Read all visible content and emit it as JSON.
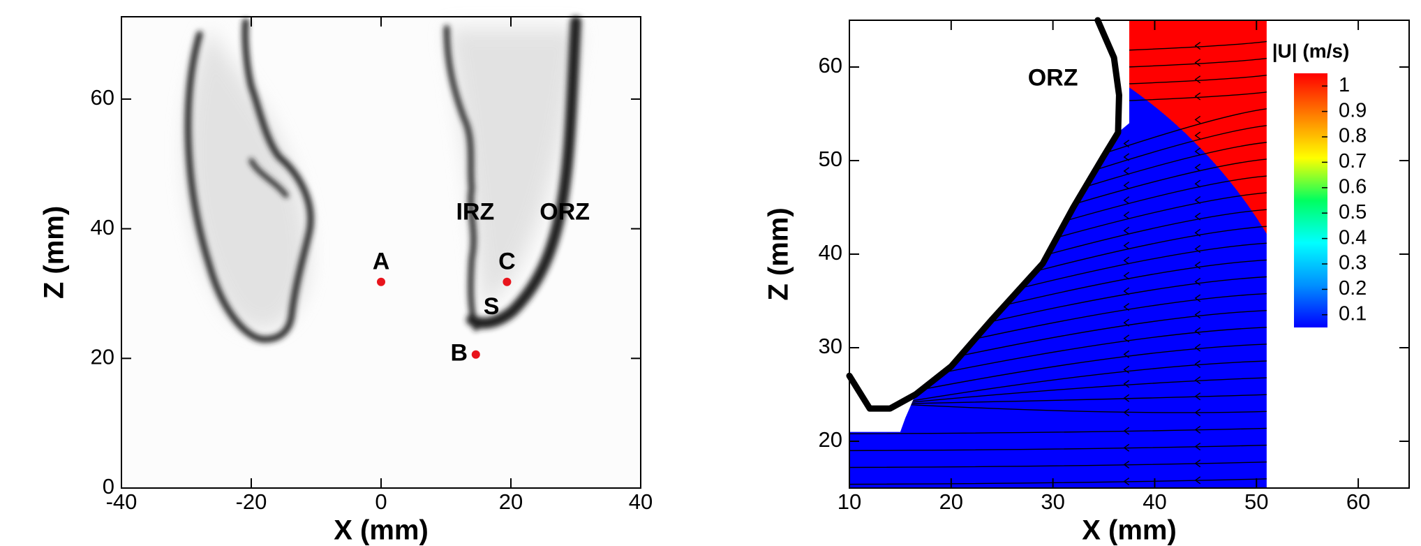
{
  "chart_data": [
    {
      "type": "image",
      "xlabel": "X (mm)",
      "ylabel": "Z (mm)",
      "xlim": [
        -40,
        40
      ],
      "ylim": [
        0,
        72.7
      ],
      "xticks": [
        -40,
        -20,
        0,
        20,
        40
      ],
      "yticks": [
        0,
        20,
        40,
        60
      ],
      "annotation_color": "#e8141c",
      "points": [
        {
          "label": "A",
          "x": 0,
          "y": 31.8
        },
        {
          "label": "B",
          "x": 14.6,
          "y": 20.6
        },
        {
          "label": "C",
          "x": 19.4,
          "y": 31.8
        }
      ],
      "annotations": [
        {
          "text": "S",
          "x": 17,
          "y": 27.8
        },
        {
          "text": "IRZ",
          "x": 14.5,
          "y": 42.4
        },
        {
          "text": "ORZ",
          "x": 28.3,
          "y": 42.4
        }
      ]
    },
    {
      "type": "contour",
      "xlabel": "X (mm)",
      "ylabel": "Z (mm)",
      "xlim": [
        10,
        65
      ],
      "ylim": [
        15,
        65
      ],
      "xticks": [
        10,
        20,
        30,
        40,
        50,
        60
      ],
      "yticks": [
        20,
        30,
        40,
        50,
        60
      ],
      "annotation_color": "#000000",
      "annotations": [
        {
          "text": "ORZ",
          "x": 30,
          "y": 58.7
        }
      ],
      "colorbar": {
        "title": "|U| (m/s)",
        "lim": [
          0.05,
          1.05
        ],
        "ticks": [
          0.1,
          0.2,
          0.3,
          0.4,
          0.5,
          0.6,
          0.7,
          0.8,
          0.9,
          1
        ],
        "colors": [
          "#0000ff",
          "#0090ff",
          "#00ffff",
          "#00ff60",
          "#ffff00",
          "#ff8000",
          "#ff0000"
        ]
      }
    }
  ]
}
